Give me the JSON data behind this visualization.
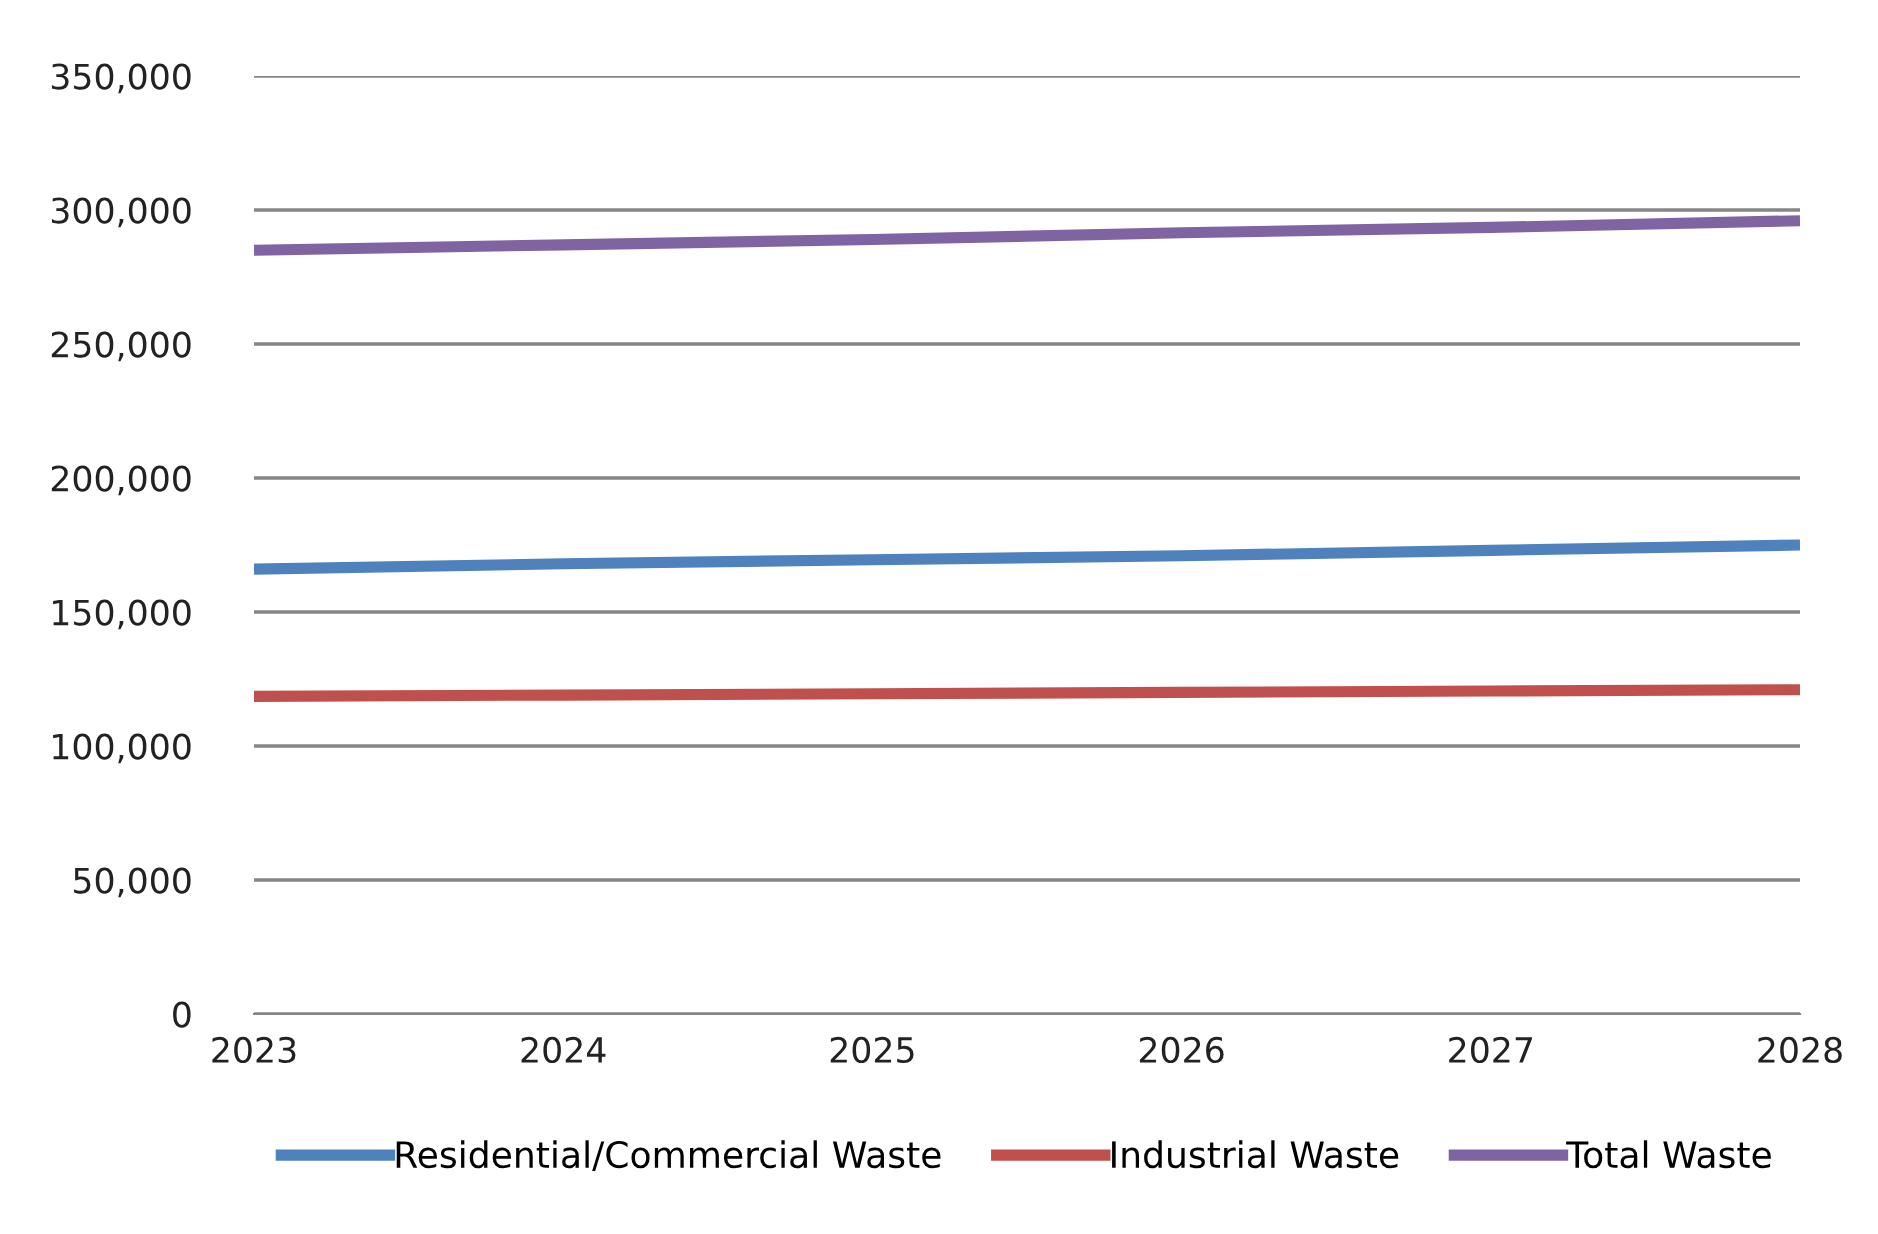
{
  "chart_data": {
    "type": "line",
    "x": [
      2023,
      2024,
      2025,
      2026,
      2027,
      2028
    ],
    "series": [
      {
        "name": "Residential/Commercial Waste",
        "color": "#4f81bd",
        "values": [
          166000,
          168000,
          169500,
          171000,
          173000,
          175000
        ]
      },
      {
        "name": "Industrial Waste",
        "color": "#c0504d",
        "values": [
          118500,
          119000,
          119500,
          120000,
          120500,
          121000
        ]
      },
      {
        "name": "Total Waste",
        "color": "#8064a2",
        "values": [
          285000,
          287000,
          289000,
          291500,
          293500,
          296000
        ]
      }
    ],
    "xlim": [
      2023,
      2028
    ],
    "xticks": [
      2023,
      2024,
      2025,
      2026,
      2027,
      2028
    ],
    "ylim": [
      0,
      350000
    ],
    "yticks": [
      {
        "value": 0,
        "label": "0"
      },
      {
        "value": 50000,
        "label": "50,000"
      },
      {
        "value": 100000,
        "label": "100,000"
      },
      {
        "value": 150000,
        "label": "150,000"
      },
      {
        "value": 200000,
        "label": "200,000"
      },
      {
        "value": 250000,
        "label": "250,000"
      },
      {
        "value": 300000,
        "label": "300,000"
      },
      {
        "value": 350000,
        "label": "350,000"
      }
    ],
    "grid": "y",
    "legend": "bottom",
    "marker": "none",
    "line_style": "solid"
  }
}
